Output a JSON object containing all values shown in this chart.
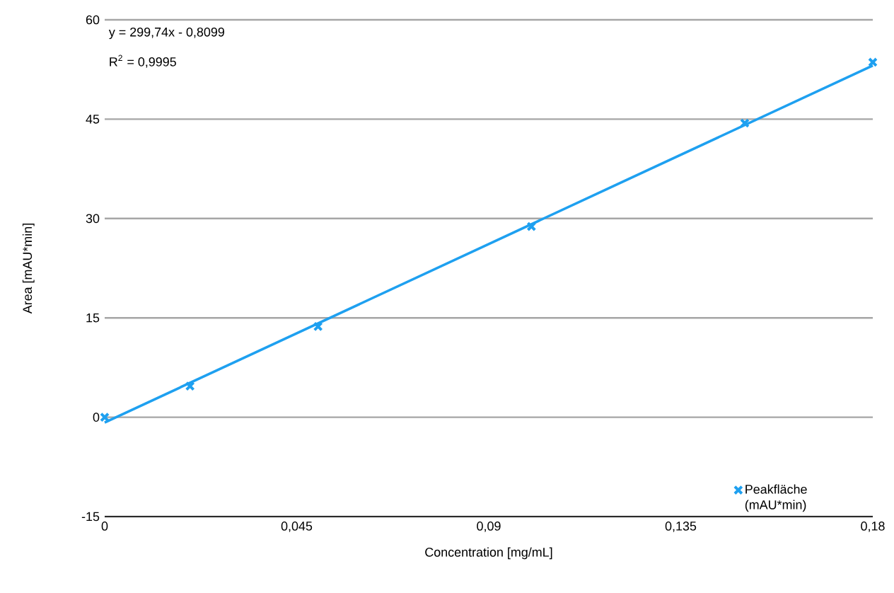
{
  "chart_data": {
    "type": "scatter",
    "xlabel": "Concentration [mg/mL]",
    "ylabel": "Area [mAU*min]",
    "xlim": [
      0,
      0.18
    ],
    "xticks": [
      {
        "value": 0,
        "label": "0"
      },
      {
        "value": 0.045,
        "label": "0,045"
      },
      {
        "value": 0.09,
        "label": "0,09"
      },
      {
        "value": 0.135,
        "label": "0,135"
      },
      {
        "value": 0.18,
        "label": "0,18"
      }
    ],
    "ylim": [
      -15,
      60
    ],
    "yticks": [
      -15,
      0,
      15,
      30,
      45,
      60
    ],
    "grid": "y",
    "legend": "bottom right",
    "marker": "cross",
    "series": [
      {
        "name": "Peakfläche (mAU*min)",
        "color": "#1ea0f0",
        "x": [
          0,
          0.02,
          0.05,
          0.1,
          0.15,
          0.18
        ],
        "values": [
          0,
          4.7,
          13.7,
          28.8,
          44.4,
          53.6
        ]
      },
      {
        "type": "line",
        "marker": "none",
        "color": "#1ea0f0",
        "x": [
          0,
          0.18
        ],
        "values": [
          -0.8,
          53.1
        ]
      }
    ],
    "annotations": [
      "y = 299,74x - 0,8099",
      "R$^{2}$ = 0,9995"
    ]
  }
}
